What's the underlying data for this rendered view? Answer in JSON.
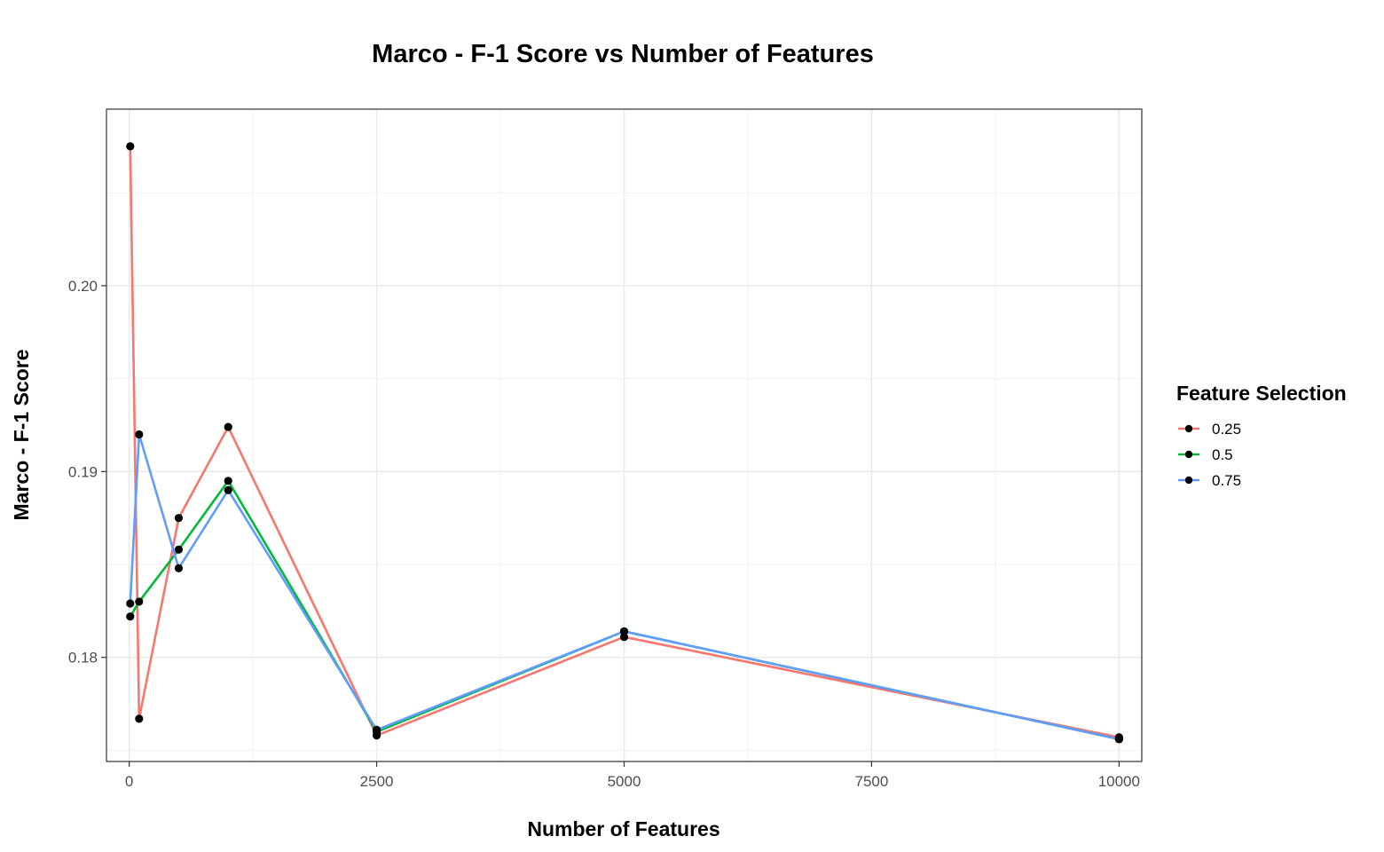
{
  "chart_data": {
    "type": "line",
    "title": "Marco - F-1 Score vs Number of Features",
    "xlabel": "Number of Features",
    "ylabel": "Marco - F-1 Score",
    "xlim": [
      -230,
      10230
    ],
    "ylim": [
      0.1744,
      0.2095
    ],
    "x_ticks": [
      0,
      2500,
      5000,
      7500,
      10000
    ],
    "x_tick_labels": [
      "0",
      "2500",
      "5000",
      "7500",
      "10000"
    ],
    "y_ticks": [
      0.18,
      0.19,
      0.2
    ],
    "y_tick_labels": [
      "0.18",
      "0.19",
      "0.20"
    ],
    "grid": true,
    "legend": {
      "title": "Feature Selection",
      "position": "right"
    },
    "series": [
      {
        "name": "0.25",
        "color": "#F8766D",
        "x": [
          10,
          100,
          500,
          1000,
          2500,
          5000,
          10000
        ],
        "y": [
          0.2075,
          0.1767,
          0.1875,
          0.1924,
          0.1758,
          0.1811,
          0.1757
        ]
      },
      {
        "name": "0.5",
        "color": "#00BA38",
        "x": [
          10,
          100,
          500,
          1000,
          2500,
          5000,
          10000
        ],
        "y": [
          0.1822,
          0.183,
          0.1858,
          0.1895,
          0.176,
          0.1814,
          0.1756
        ]
      },
      {
        "name": "0.75",
        "color": "#619CFF",
        "x": [
          10,
          100,
          500,
          1000,
          2500,
          5000,
          10000
        ],
        "y": [
          0.1829,
          0.192,
          0.1848,
          0.189,
          0.1761,
          0.1814,
          0.1756
        ]
      }
    ]
  }
}
